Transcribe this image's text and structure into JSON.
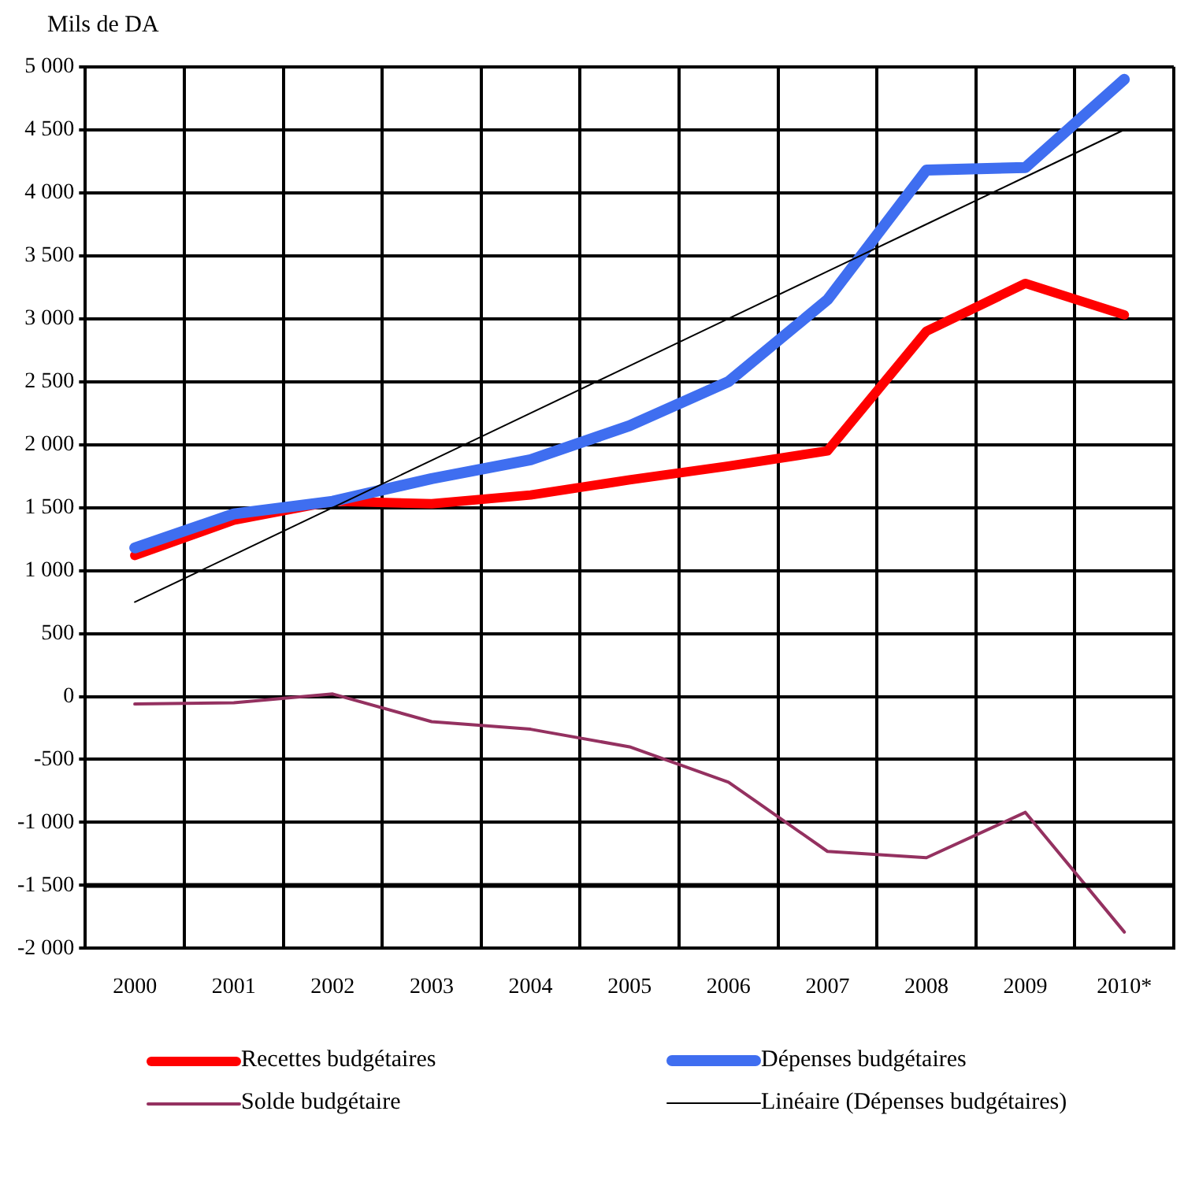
{
  "chart_data": {
    "type": "line",
    "ylabel": "Mils de DA",
    "categories": [
      "2000",
      "2001",
      "2002",
      "2003",
      "2004",
      "2005",
      "2006",
      "2007",
      "2008",
      "2009",
      "2010*"
    ],
    "series": [
      {
        "name": "Recettes budgétaires",
        "color": "#ff0000",
        "values": [
          1120,
          1400,
          1550,
          1530,
          1600,
          1720,
          1830,
          1950,
          2900,
          3280,
          3030
        ]
      },
      {
        "name": "Dépenses budgétaires",
        "color": "#3f6ef0",
        "values": [
          1180,
          1450,
          1550,
          1730,
          1880,
          2150,
          2500,
          3150,
          4180,
          4200,
          4900
        ]
      },
      {
        "name": "Solde budgétaire",
        "color": "#943160",
        "values": [
          -60,
          -50,
          20,
          -200,
          -260,
          -400,
          -680,
          -1230,
          -1280,
          -920,
          -1870
        ]
      },
      {
        "name": "Linéaire (Dépenses budgétaires)",
        "color": "#000000",
        "values": [
          750,
          1125,
          1500,
          1875,
          2250,
          2625,
          3000,
          3375,
          3750,
          4125,
          4500
        ]
      }
    ],
    "ylim": [
      -2000,
      5000
    ],
    "yticks": [
      {
        "value": -2000,
        "label": "-2 000"
      },
      {
        "value": -1500,
        "label": "-1 500"
      },
      {
        "value": -1000,
        "label": "-1 000"
      },
      -500,
      0,
      500,
      {
        "value": 1000,
        "label": "1 000"
      },
      {
        "value": 1500,
        "label": "1 500"
      },
      {
        "value": 2000,
        "label": "2 000"
      },
      {
        "value": 2500,
        "label": "2 500"
      },
      {
        "value": 3000,
        "label": "3 000"
      },
      {
        "value": 3500,
        "label": "3 500"
      },
      {
        "value": 4000,
        "label": "4 000"
      },
      {
        "value": 4500,
        "label": "4 500"
      },
      {
        "value": 5000,
        "label": "5 000"
      }
    ],
    "ref_lines": [
      {
        "axis": "y",
        "value": -1500,
        "color": "#000000"
      }
    ],
    "grid": true,
    "legend": "bottom",
    "marker": "none"
  }
}
